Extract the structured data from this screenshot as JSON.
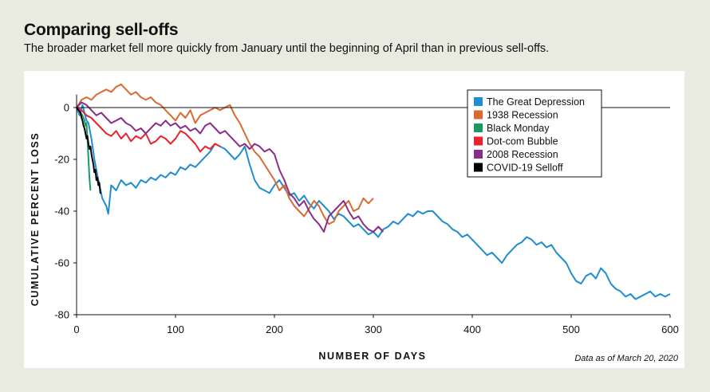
{
  "header": {
    "title": "Comparing sell-offs",
    "subtitle": "The broader market fell more quickly from January until the beginning of April than in previous sell-offs."
  },
  "note": "Data as of March 20, 2020",
  "colors": {
    "background": "#e9eae0",
    "panel": "#ffffff",
    "depression": "#1f8ecf",
    "recession1938": "#d86a33",
    "black_monday": "#1a9a62",
    "dotcom": "#e8232e",
    "recession2008": "#8a2d8a",
    "covid": "#000000"
  },
  "chart_data": {
    "type": "line",
    "xlabel": "NUMBER OF DAYS",
    "ylabel": "CUMULATIVE PERCENT LOSS",
    "xlim": [
      0,
      600
    ],
    "ylim": [
      -80,
      5
    ],
    "xticks": [
      0,
      100,
      200,
      300,
      400,
      500,
      600
    ],
    "yticks": [
      0,
      -20,
      -40,
      -60,
      -80
    ],
    "legend_position": "top-right",
    "series": [
      {
        "name": "The Great Depression",
        "color": "#1f8ecf",
        "x": [
          0,
          3,
          6,
          8,
          10,
          12,
          15,
          18,
          22,
          26,
          30,
          32,
          35,
          40,
          45,
          50,
          55,
          60,
          65,
          70,
          75,
          80,
          85,
          90,
          95,
          100,
          105,
          110,
          115,
          120,
          125,
          130,
          135,
          140,
          145,
          150,
          155,
          160,
          165,
          170,
          175,
          180,
          185,
          190,
          195,
          200,
          205,
          210,
          215,
          220,
          225,
          230,
          235,
          240,
          245,
          250,
          255,
          260,
          265,
          270,
          275,
          280,
          285,
          290,
          295,
          300,
          305,
          310,
          315,
          320,
          325,
          330,
          335,
          340,
          345,
          350,
          355,
          360,
          365,
          370,
          375,
          380,
          385,
          390,
          395,
          400,
          405,
          410,
          415,
          420,
          425,
          430,
          435,
          440,
          445,
          450,
          455,
          460,
          465,
          470,
          475,
          480,
          485,
          490,
          495,
          500,
          505,
          510,
          515,
          520,
          525,
          530,
          535,
          540,
          545,
          550,
          555,
          560,
          565,
          570,
          575,
          580,
          585,
          590,
          595,
          600
        ],
        "y": [
          0,
          -3,
          1,
          -2,
          -5,
          -6,
          -12,
          -20,
          -28,
          -35,
          -38,
          -41,
          -30,
          -32,
          -28,
          -30,
          -29,
          -31,
          -28,
          -29,
          -27,
          -28,
          -26,
          -27,
          -25,
          -26,
          -23,
          -24,
          -22,
          -23,
          -21,
          -19,
          -17,
          -14,
          -15,
          -16,
          -18,
          -20,
          -18,
          -15,
          -22,
          -28,
          -31,
          -32,
          -33,
          -30,
          -28,
          -31,
          -34,
          -33,
          -36,
          -34,
          -37,
          -39,
          -36,
          -38,
          -40,
          -43,
          -41,
          -42,
          -44,
          -46,
          -45,
          -47,
          -49,
          -48,
          -50,
          -47,
          -46,
          -44,
          -45,
          -43,
          -41,
          -42,
          -40,
          -41,
          -40,
          -40,
          -42,
          -44,
          -45,
          -47,
          -48,
          -50,
          -49,
          -51,
          -53,
          -55,
          -57,
          -56,
          -58,
          -60,
          -57,
          -55,
          -53,
          -52,
          -50,
          -51,
          -53,
          -52,
          -54,
          -53,
          -56,
          -58,
          -60,
          -64,
          -67,
          -68,
          -65,
          -64,
          -66,
          -62,
          -64,
          -68,
          -70,
          -71,
          -73,
          -72,
          -74,
          -73,
          -72,
          -71,
          -73,
          -72,
          -73,
          -72
        ]
      },
      {
        "name": "1938 Recession",
        "color": "#d86a33",
        "x": [
          0,
          5,
          10,
          15,
          20,
          25,
          30,
          35,
          40,
          45,
          50,
          55,
          60,
          65,
          70,
          75,
          80,
          85,
          90,
          95,
          100,
          105,
          110,
          115,
          120,
          125,
          130,
          135,
          140,
          145,
          150,
          155,
          160,
          165,
          170,
          175,
          180,
          185,
          190,
          195,
          200,
          205,
          210,
          215,
          220,
          225,
          230,
          235,
          240,
          245,
          250,
          255,
          260,
          265,
          270,
          275,
          280,
          285,
          290,
          295,
          300
        ],
        "y": [
          0,
          3,
          4,
          3,
          5,
          6,
          7,
          6,
          8,
          9,
          7,
          5,
          6,
          4,
          3,
          4,
          2,
          1,
          -1,
          -3,
          -5,
          -2,
          -4,
          -1,
          -6,
          -3,
          -2,
          -1,
          0,
          -1,
          0,
          1,
          -3,
          -6,
          -10,
          -14,
          -17,
          -19,
          -22,
          -25,
          -28,
          -32,
          -30,
          -35,
          -38,
          -40,
          -42,
          -39,
          -36,
          -38,
          -42,
          -45,
          -44,
          -40,
          -38,
          -36,
          -40,
          -39,
          -35,
          -37,
          -35
        ]
      },
      {
        "name": "Black Monday",
        "color": "#1a9a62",
        "x": [
          0,
          2,
          4,
          6,
          8,
          9,
          10,
          11,
          12,
          13,
          14
        ],
        "y": [
          0,
          -1,
          -2,
          -3,
          -5,
          -7,
          -6,
          -12,
          -20,
          -27,
          -32
        ]
      },
      {
        "name": "Dot-com Bubble",
        "color": "#e8232e",
        "x": [
          0,
          5,
          10,
          15,
          20,
          25,
          30,
          35,
          40,
          45,
          50,
          55,
          60,
          65,
          70,
          75,
          80,
          85,
          90,
          95,
          100,
          105,
          110,
          115,
          120,
          125,
          130,
          135,
          140,
          145
        ],
        "y": [
          0,
          -1,
          -3,
          -4,
          -6,
          -8,
          -10,
          -11,
          -9,
          -12,
          -10,
          -13,
          -11,
          -12,
          -10,
          -14,
          -13,
          -11,
          -12,
          -14,
          -12,
          -9,
          -10,
          -12,
          -14,
          -17,
          -15,
          -16,
          -14,
          -15
        ]
      },
      {
        "name": "2008 Recession",
        "color": "#8a2d8a",
        "x": [
          0,
          5,
          10,
          15,
          20,
          25,
          30,
          35,
          40,
          45,
          50,
          55,
          60,
          65,
          70,
          75,
          80,
          85,
          90,
          95,
          100,
          105,
          110,
          115,
          120,
          125,
          130,
          135,
          140,
          145,
          150,
          155,
          160,
          165,
          170,
          175,
          180,
          185,
          190,
          195,
          200,
          205,
          210,
          215,
          220,
          225,
          230,
          235,
          240,
          245,
          250,
          255,
          260,
          265,
          270,
          275,
          280,
          285,
          290,
          295,
          300,
          305,
          310
        ],
        "y": [
          0,
          2,
          1,
          -1,
          -3,
          -2,
          -4,
          -6,
          -5,
          -4,
          -6,
          -7,
          -9,
          -8,
          -10,
          -8,
          -6,
          -7,
          -5,
          -7,
          -6,
          -8,
          -7,
          -9,
          -8,
          -10,
          -7,
          -6,
          -8,
          -10,
          -9,
          -11,
          -13,
          -15,
          -14,
          -16,
          -14,
          -15,
          -17,
          -16,
          -18,
          -24,
          -28,
          -33,
          -35,
          -38,
          -36,
          -40,
          -43,
          -45,
          -48,
          -42,
          -40,
          -38,
          -36,
          -40,
          -43,
          -42,
          -45,
          -47,
          -48,
          -46,
          -48
        ]
      },
      {
        "name": "COVID-19 Selloff",
        "color": "#000000",
        "x": [
          0,
          2,
          4,
          5,
          6,
          7,
          8,
          9,
          10,
          11,
          12,
          13,
          14,
          15,
          16,
          17,
          18,
          19,
          20,
          21,
          22,
          23,
          24,
          25
        ],
        "y": [
          0,
          -1,
          -2,
          -4,
          -5,
          -7,
          -8,
          -10,
          -12,
          -11,
          -14,
          -16,
          -15,
          -18,
          -20,
          -22,
          -25,
          -24,
          -28,
          -27,
          -30,
          -29,
          -33,
          -33
        ]
      }
    ]
  }
}
